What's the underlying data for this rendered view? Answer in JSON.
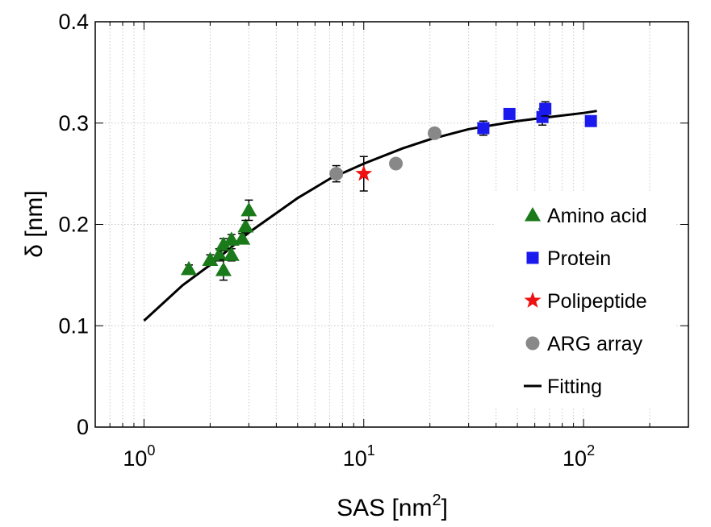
{
  "chart_data": {
    "type": "scatter",
    "xscale": "log",
    "xlim": [
      0.6,
      300
    ],
    "ylim": [
      0,
      0.4
    ],
    "grid": true,
    "xlabel": "SAS [nm",
    "xlabel_sup": "2",
    "xlabel_close": "]",
    "ylabel": "δ [nm]",
    "xticks": [
      {
        "value": 1,
        "base": "10",
        "exp": "0"
      },
      {
        "value": 10,
        "base": "10",
        "exp": "1"
      },
      {
        "value": 100,
        "base": "10",
        "exp": "2"
      }
    ],
    "yticks": [
      {
        "value": 0,
        "label": "0"
      },
      {
        "value": 0.1,
        "label": "0.1"
      },
      {
        "value": 0.2,
        "label": "0.2"
      },
      {
        "value": 0.3,
        "label": "0.3"
      },
      {
        "value": 0.4,
        "label": "0.4"
      }
    ],
    "legend_position": "right",
    "series": [
      {
        "name": "Amino acid",
        "marker": "triangle",
        "color": "#1a7a1a",
        "points": [
          {
            "x": 1.6,
            "y": 0.156,
            "err": 0.004
          },
          {
            "x": 2.0,
            "y": 0.165,
            "err": 0.005
          },
          {
            "x": 2.2,
            "y": 0.17,
            "err": 0.006
          },
          {
            "x": 2.3,
            "y": 0.155,
            "err": 0.01
          },
          {
            "x": 2.3,
            "y": 0.18,
            "err": 0.006
          },
          {
            "x": 2.5,
            "y": 0.185,
            "err": 0.005
          },
          {
            "x": 2.5,
            "y": 0.17,
            "err": 0.006
          },
          {
            "x": 2.8,
            "y": 0.186,
            "err": 0.005
          },
          {
            "x": 2.9,
            "y": 0.198,
            "err": 0.006
          },
          {
            "x": 3.0,
            "y": 0.214,
            "err": 0.01
          }
        ]
      },
      {
        "name": "Protein",
        "marker": "square",
        "color": "#1a1aee",
        "points": [
          {
            "x": 35,
            "y": 0.295,
            "err": 0.007
          },
          {
            "x": 46,
            "y": 0.309,
            "err": 0.005
          },
          {
            "x": 65,
            "y": 0.306,
            "err": 0.008
          },
          {
            "x": 67,
            "y": 0.314,
            "err": 0.007
          },
          {
            "x": 108,
            "y": 0.302,
            "err": 0.004
          }
        ]
      },
      {
        "name": "Polipeptide",
        "marker": "star",
        "color": "#ee1111",
        "points": [
          {
            "x": 10,
            "y": 0.25,
            "err": 0.017
          }
        ]
      },
      {
        "name": "ARG array",
        "marker": "circle",
        "color": "#888888",
        "points": [
          {
            "x": 7.5,
            "y": 0.25,
            "err": 0.008
          },
          {
            "x": 14,
            "y": 0.26,
            "err": 0.005
          },
          {
            "x": 21,
            "y": 0.29,
            "err": 0.004
          }
        ]
      },
      {
        "name": "Fitting",
        "marker": "line",
        "color": "#000000",
        "curve": [
          {
            "x": 1,
            "y": 0.105
          },
          {
            "x": 1.5,
            "y": 0.14
          },
          {
            "x": 2,
            "y": 0.16
          },
          {
            "x": 3,
            "y": 0.192
          },
          {
            "x": 5,
            "y": 0.226
          },
          {
            "x": 7,
            "y": 0.245
          },
          {
            "x": 10,
            "y": 0.26
          },
          {
            "x": 15,
            "y": 0.275
          },
          {
            "x": 20,
            "y": 0.284
          },
          {
            "x": 30,
            "y": 0.294
          },
          {
            "x": 50,
            "y": 0.302
          },
          {
            "x": 70,
            "y": 0.306
          },
          {
            "x": 100,
            "y": 0.31
          },
          {
            "x": 115,
            "y": 0.312
          }
        ]
      }
    ]
  }
}
